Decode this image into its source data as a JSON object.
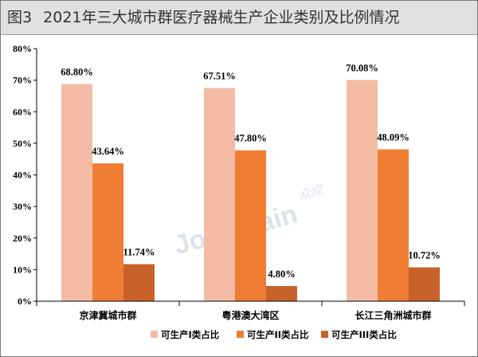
{
  "title": {
    "figure_no": "图3",
    "text": "2021年三大城市群医疗器械生产企业类别及比例情况"
  },
  "watermark": {
    "latin": "Joinchain",
    "cjk": "众成"
  },
  "colors": {
    "series": [
      "#f4bba4",
      "#ef7d33",
      "#c8622a"
    ],
    "axis": "#000000",
    "title_bg": "#e0e0e0"
  },
  "chart_data": {
    "type": "bar",
    "categories": [
      "京津冀城市群",
      "粤港澳大湾区",
      "长江三角洲城市群"
    ],
    "series": [
      {
        "name": "可生产I类占比",
        "values": [
          68.8,
          67.51,
          70.08
        ],
        "labels": [
          "68.80%",
          "67.51%",
          "70.08%"
        ]
      },
      {
        "name": "可生产II类占比",
        "values": [
          43.64,
          47.8,
          48.09
        ],
        "labels": [
          "43.64%",
          "47.80%",
          "48.09%"
        ]
      },
      {
        "name": "可生产III类占比",
        "values": [
          11.74,
          4.8,
          10.72
        ],
        "labels": [
          "11.74%",
          "4.80%",
          "10.72%"
        ]
      }
    ],
    "ylim": [
      0,
      80
    ],
    "yticks": [
      0,
      10,
      20,
      30,
      40,
      50,
      60,
      70,
      80
    ],
    "ytick_labels": [
      "0%",
      "10%",
      "20%",
      "30%",
      "40%",
      "50%",
      "60%",
      "70%",
      "80%"
    ],
    "grid": false,
    "legend": "bottom-center"
  }
}
